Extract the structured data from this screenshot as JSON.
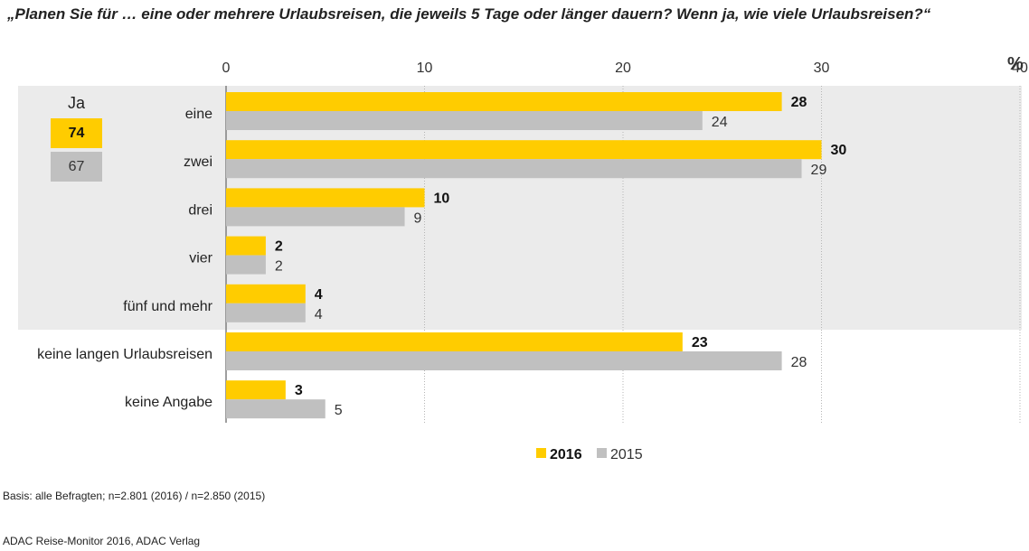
{
  "title": "„Planen Sie für … eine oder mehrere Urlaubsreisen, die jeweils 5 Tage oder länger dauern? Wenn ja, wie viele Urlaubsreisen?“",
  "unit": "%",
  "ja_box": {
    "label": "Ja",
    "value_2016": "74",
    "value_2015": "67"
  },
  "legend": {
    "label_2016": "2016",
    "label_2015": "2015"
  },
  "colors": {
    "series_2016": "#ffcc00",
    "series_2015": "#c0c0c0",
    "highlight_band": "#ebebeb"
  },
  "footnote_basis": "Basis: alle Befragten; n=2.801 (2016) / n=2.850 (2015)",
  "footnote_source": "ADAC Reise-Monitor 2016, ADAC Verlag",
  "chart_data": {
    "type": "bar",
    "orientation": "horizontal",
    "categories": [
      "eine",
      "zwei",
      "drei",
      "vier",
      "fünf und mehr",
      "keine langen Urlaubsreisen",
      "keine Angabe"
    ],
    "series": [
      {
        "name": "2016",
        "values": [
          28,
          30,
          10,
          2,
          4,
          23,
          3
        ]
      },
      {
        "name": "2015",
        "values": [
          24,
          29,
          9,
          2,
          4,
          28,
          5
        ]
      }
    ],
    "xlim": [
      0,
      40
    ],
    "xticks": [
      0,
      10,
      20,
      30,
      40
    ],
    "highlighted_categories": [
      "eine",
      "zwei",
      "drei",
      "vier",
      "fünf und mehr"
    ],
    "legend_position": "bottom",
    "grid": true
  }
}
